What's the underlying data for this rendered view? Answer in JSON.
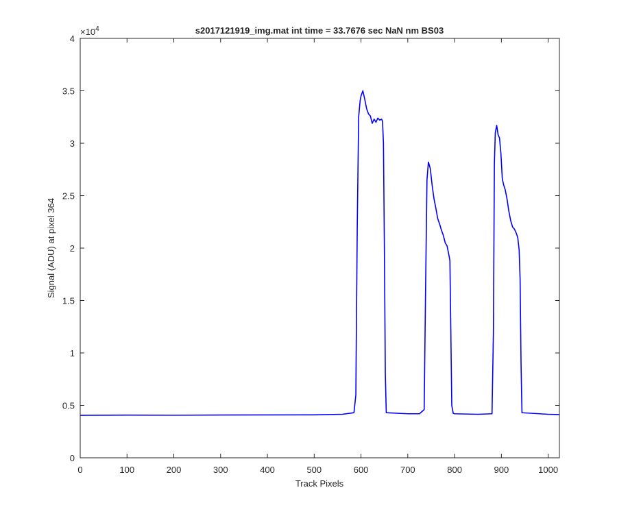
{
  "chart_data": {
    "type": "line",
    "title": "s2017121919_img.mat int time = 33.7676 sec  NaN nm BS03",
    "xlabel": "Track Pixels",
    "ylabel": "Signal (ADU) at pixel 364",
    "y_exponent_label": "×10",
    "y_exponent_power": "4",
    "xlim": [
      0,
      1024
    ],
    "ylim": [
      0,
      40000
    ],
    "x_ticks": [
      0,
      100,
      200,
      300,
      400,
      500,
      600,
      700,
      800,
      900,
      1000
    ],
    "x_tick_labels": [
      "0",
      "100",
      "200",
      "300",
      "400",
      "500",
      "600",
      "700",
      "800",
      "900",
      "1000"
    ],
    "y_ticks": [
      0,
      5000,
      10000,
      15000,
      20000,
      25000,
      30000,
      35000,
      40000
    ],
    "y_tick_labels": [
      "0",
      "0.5",
      "1",
      "1.5",
      "2",
      "2.5",
      "3",
      "3.5",
      "4"
    ],
    "grid": false,
    "line_color": "#0000ff",
    "series": [
      {
        "x": [
          0,
          100,
          200,
          300,
          400,
          500,
          560,
          585,
          589,
          592,
          595,
          598,
          600,
          604,
          608,
          612,
          616,
          620,
          624,
          628,
          632,
          636,
          640,
          644,
          646,
          648,
          650,
          652,
          654,
          700,
          725,
          735,
          738,
          741,
          744,
          748,
          752,
          756,
          760,
          764,
          768,
          772,
          776,
          780,
          784,
          788,
          790,
          792,
          794,
          797,
          800,
          850,
          880,
          883,
          885,
          887,
          890,
          893,
          896,
          899,
          902,
          905,
          908,
          912,
          916,
          920,
          924,
          928,
          932,
          935,
          938,
          940,
          942,
          944,
          1000,
          1024
        ],
        "y": [
          4050,
          4070,
          4060,
          4080,
          4090,
          4100,
          4150,
          4300,
          6000,
          22000,
          32500,
          34000,
          34500,
          35000,
          34200,
          33300,
          32800,
          32600,
          31900,
          32300,
          32000,
          32400,
          32200,
          32300,
          32100,
          30000,
          20000,
          8000,
          4300,
          4200,
          4200,
          4600,
          16000,
          26500,
          28200,
          27600,
          26000,
          24700,
          23800,
          22800,
          22300,
          21700,
          21200,
          20500,
          20200,
          19300,
          18800,
          12000,
          5000,
          4250,
          4200,
          4150,
          4200,
          12000,
          28000,
          31000,
          31700,
          30800,
          30500,
          29000,
          26600,
          26000,
          25600,
          24700,
          23500,
          22600,
          22000,
          21800,
          21400,
          21000,
          19800,
          17000,
          9000,
          4300,
          4150,
          4120
        ]
      }
    ]
  }
}
